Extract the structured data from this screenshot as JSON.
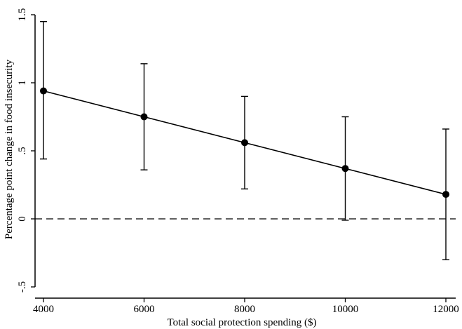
{
  "chart_data": {
    "type": "line",
    "xlabel": "Total social protection spending ($)",
    "ylabel": "Percentage point change in food insecurity",
    "xlim": [
      4000,
      12000
    ],
    "ylim": [
      -0.5,
      1.5
    ],
    "x_ticks": [
      4000,
      6000,
      8000,
      10000,
      12000
    ],
    "x_tick_labels": [
      "4000",
      "6000",
      "8000",
      "10000",
      "12000"
    ],
    "y_ticks": [
      -0.5,
      0,
      0.5,
      1,
      1.5
    ],
    "y_tick_labels": [
      "-.5",
      "0",
      ".5",
      "1",
      "1.5"
    ],
    "reference_line": {
      "y": 0,
      "style": "dashed"
    },
    "grid": false,
    "series": [
      {
        "x": [
          4000,
          6000,
          8000,
          10000,
          12000
        ],
        "y": [
          0.94,
          0.75,
          0.56,
          0.37,
          0.18
        ],
        "ci_lower": [
          0.44,
          0.36,
          0.22,
          -0.01,
          -0.3
        ],
        "ci_upper": [
          1.45,
          1.14,
          0.9,
          0.75,
          0.66
        ]
      }
    ],
    "colors": {
      "line": "#000000",
      "marker": "#000000",
      "axis": "#000000"
    }
  }
}
